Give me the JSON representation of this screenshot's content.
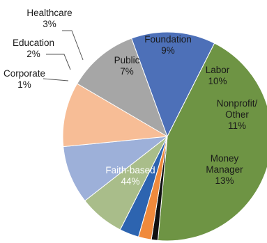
{
  "chart_data": {
    "type": "pie",
    "title": "",
    "start_angle_deg": 196,
    "direction": "clockwise",
    "slices": [
      {
        "label": "Healthcare",
        "pct_label": "3%",
        "value": 3,
        "color": "#2d64b0"
      },
      {
        "label": "Public",
        "pct_label": "7%",
        "value": 7,
        "color": "#a9bd8a"
      },
      {
        "label": "Foundation",
        "pct_label": "9%",
        "value": 9,
        "color": "#9db0d9"
      },
      {
        "label": "Labor",
        "pct_label": "10%",
        "value": 10,
        "color": "#f7bd96"
      },
      {
        "label": "Nonprofit/ Other",
        "label_lines": [
          "Nonprofit/",
          "Other"
        ],
        "pct_label": "11%",
        "value": 11,
        "color": "#a6a6a6"
      },
      {
        "label": "Money Manager",
        "label_lines": [
          "Money",
          "Manager"
        ],
        "pct_label": "13%",
        "value": 13,
        "color": "#4d70b8"
      },
      {
        "label": "Faith-based",
        "pct_label": "44%",
        "value": 44,
        "color": "#6e9444"
      },
      {
        "label": "Corporate",
        "pct_label": "1%",
        "value": 1,
        "color": "#111111"
      },
      {
        "label": "Education",
        "pct_label": "2%",
        "value": 2,
        "color": "#f08a3c"
      }
    ]
  }
}
